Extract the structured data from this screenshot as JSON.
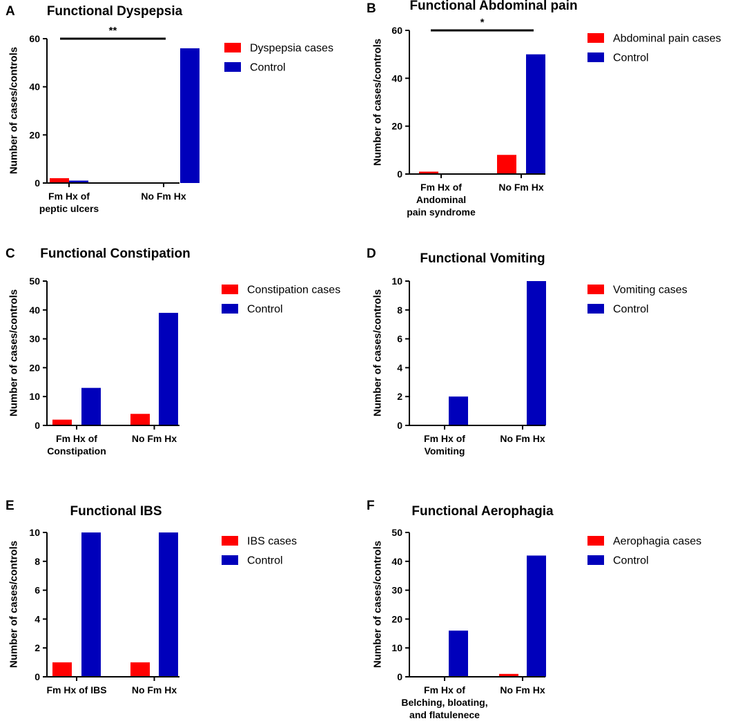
{
  "chart_data": [
    {
      "type": "bar",
      "panel": "A",
      "title": "Functional Dyspepsia",
      "ylabel": "Number of cases/controls",
      "xlabel": "",
      "categories": [
        [
          "Fm Hx of",
          "peptic ulcers"
        ],
        [
          "No Fm Hx"
        ]
      ],
      "ylim": [
        0,
        60
      ],
      "yticks": [
        0,
        20,
        40,
        60
      ],
      "series": [
        {
          "name": "Dyspepsia cases",
          "color": "#ff0000",
          "values": [
            2,
            0
          ]
        },
        {
          "name": "Control",
          "color": "#0000bb",
          "values": [
            1,
            56
          ]
        }
      ],
      "significance": {
        "label": "**",
        "from": 0,
        "to": 1
      }
    },
    {
      "type": "bar",
      "panel": "B",
      "title": "Functional Abdominal pain",
      "ylabel": "Number of cases/controls",
      "xlabel": "",
      "categories": [
        [
          "Fm Hx of",
          "Andominal",
          "pain syndrome"
        ],
        [
          "No Fm Hx"
        ]
      ],
      "ylim": [
        0,
        60
      ],
      "yticks": [
        0,
        20,
        40,
        60
      ],
      "series": [
        {
          "name": "Abdominal pain cases",
          "color": "#ff0000",
          "values": [
            1,
            8
          ]
        },
        {
          "name": "Control",
          "color": "#0000bb",
          "values": [
            0,
            50
          ]
        }
      ],
      "significance": {
        "label": "*",
        "from": 0,
        "to": 1
      }
    },
    {
      "type": "bar",
      "panel": "C",
      "title": "Functional Constipation",
      "ylabel": "Number of cases/controls",
      "xlabel": "",
      "categories": [
        [
          "Fm Hx of",
          "Constipation"
        ],
        [
          "No Fm Hx"
        ]
      ],
      "ylim": [
        0,
        50
      ],
      "yticks": [
        0,
        10,
        20,
        30,
        40,
        50
      ],
      "series": [
        {
          "name": "Constipation cases",
          "color": "#ff0000",
          "values": [
            2,
            4
          ]
        },
        {
          "name": "Control",
          "color": "#0000bb",
          "values": [
            13,
            39
          ]
        }
      ]
    },
    {
      "type": "bar",
      "panel": "D",
      "title": "Functional Vomiting",
      "ylabel": "Number of cases/controls",
      "xlabel": "",
      "categories": [
        [
          "Fm Hx of",
          "Vomiting"
        ],
        [
          "No Fm Hx"
        ]
      ],
      "ylim": [
        0,
        10
      ],
      "yticks": [
        0,
        2,
        4,
        6,
        8,
        10
      ],
      "series": [
        {
          "name": "Vomiting cases",
          "color": "#ff0000",
          "values": [
            0,
            0
          ]
        },
        {
          "name": "Control",
          "color": "#0000bb",
          "values": [
            2,
            10
          ]
        }
      ]
    },
    {
      "type": "bar",
      "panel": "E",
      "title": "Functional IBS",
      "ylabel": "Number of cases/controls",
      "xlabel": "",
      "categories": [
        [
          "Fm Hx of IBS"
        ],
        [
          "No Fm Hx"
        ]
      ],
      "ylim": [
        0,
        10
      ],
      "yticks": [
        0,
        2,
        4,
        6,
        8,
        10
      ],
      "series": [
        {
          "name": "IBS cases",
          "color": "#ff0000",
          "values": [
            1,
            1
          ]
        },
        {
          "name": "Control",
          "color": "#0000bb",
          "values": [
            10,
            10
          ]
        }
      ]
    },
    {
      "type": "bar",
      "panel": "F",
      "title": "Functional Aerophagia",
      "ylabel": "Number of cases/controls",
      "xlabel": "",
      "categories": [
        [
          "Fm Hx of",
          "Belching, bloating,",
          "and flatulenece"
        ],
        [
          "No Fm Hx"
        ]
      ],
      "ylim": [
        0,
        50
      ],
      "yticks": [
        0,
        10,
        20,
        30,
        40,
        50
      ],
      "series": [
        {
          "name": "Aerophagia cases",
          "color": "#ff0000",
          "values": [
            0,
            1
          ]
        },
        {
          "name": "Control",
          "color": "#0000bb",
          "values": [
            16,
            42
          ]
        }
      ]
    }
  ]
}
